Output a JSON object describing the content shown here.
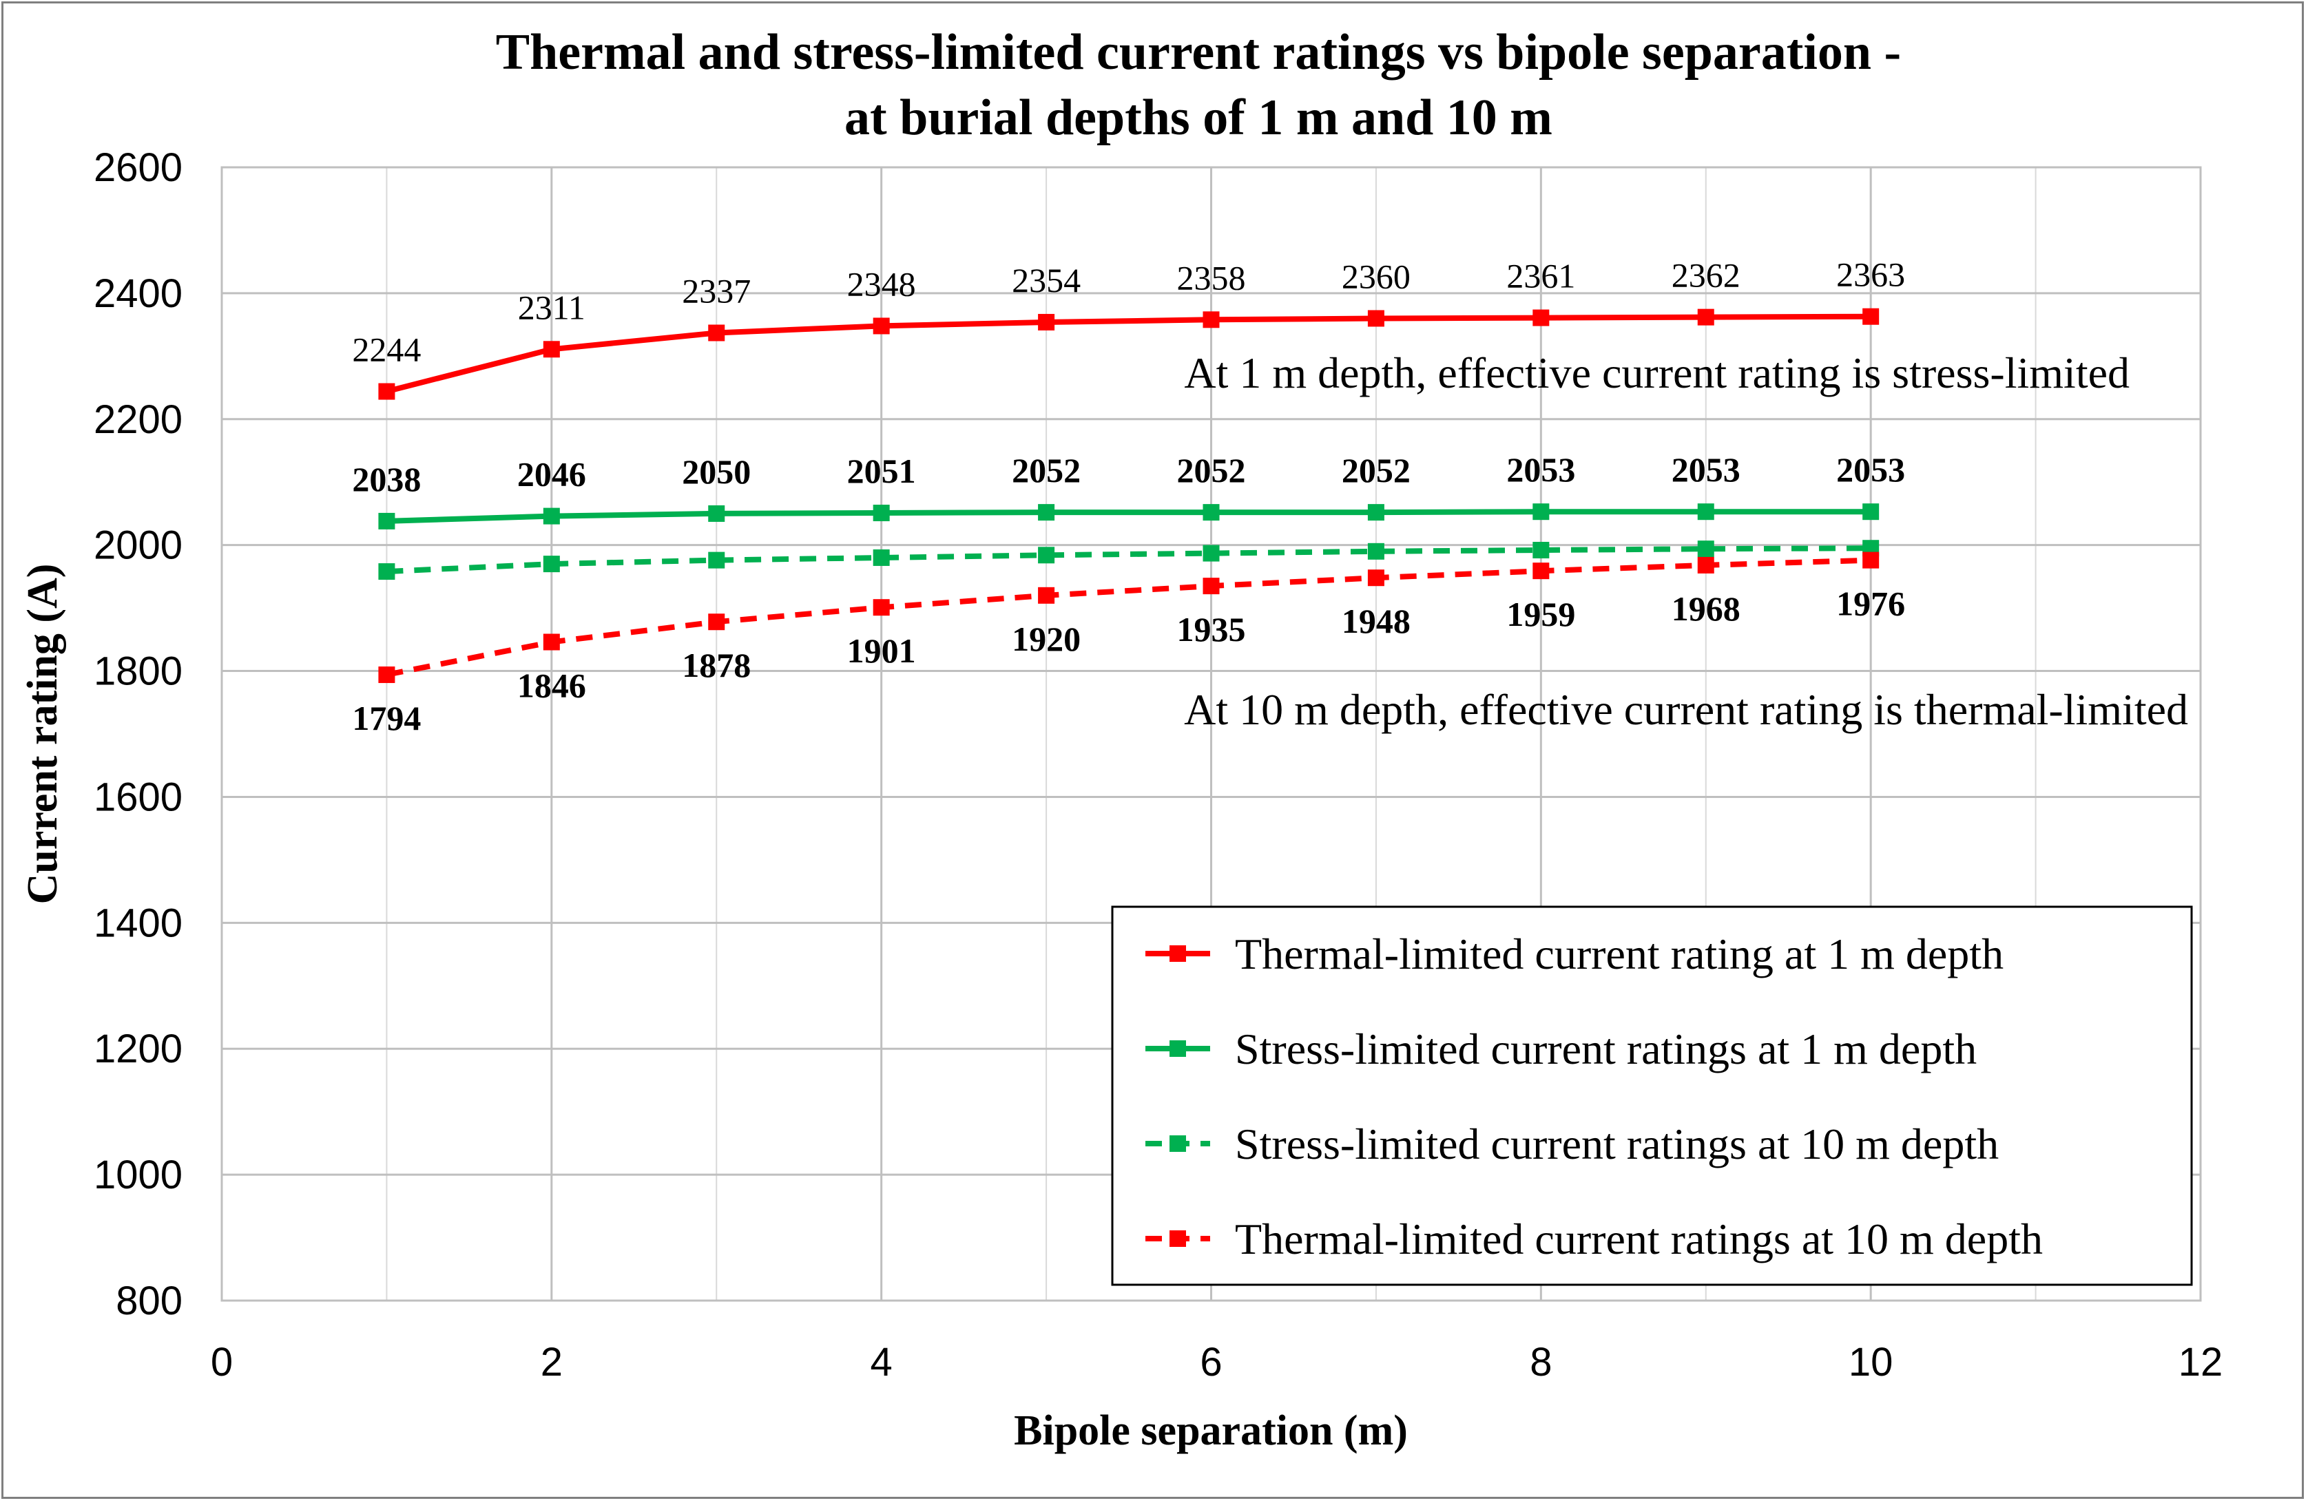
{
  "chart_data": {
    "type": "line",
    "title_line1": "Thermal and stress-limited current ratings vs bipole separation -",
    "title_line2": "at burial depths of 1 m and 10 m",
    "xlabel": "Bipole separation (m)",
    "ylabel": "Current rating (A)",
    "xlim": [
      0,
      12
    ],
    "ylim": [
      800,
      2600
    ],
    "x_ticks": [
      "0",
      "2",
      "4",
      "6",
      "8",
      "10",
      "12"
    ],
    "y_ticks": [
      "800",
      "1000",
      "1200",
      "1400",
      "1600",
      "1800",
      "2000",
      "2200",
      "2400",
      "2600"
    ],
    "grid": true,
    "legend_position": "bottom-right",
    "x": [
      1,
      2,
      3,
      4,
      5,
      6,
      7,
      8,
      9,
      10
    ],
    "series": [
      {
        "name": "Thermal-limited current rating at 1 m depth",
        "values": [
          2244,
          2311,
          2337,
          2348,
          2354,
          2358,
          2360,
          2361,
          2362,
          2363
        ],
        "color": "#ff0000",
        "dashed": false,
        "labels": [
          "2244",
          "2311",
          "2337",
          "2348",
          "2354",
          "2358",
          "2360",
          "2361",
          "2362",
          "2363"
        ],
        "label_style": "normal",
        "label_position": "above"
      },
      {
        "name": "Stress-limited current ratings at 1 m depth",
        "values": [
          2038,
          2046,
          2050,
          2051,
          2052,
          2052,
          2052,
          2053,
          2053,
          2053
        ],
        "color": "#00b050",
        "dashed": false,
        "labels": [
          "2038",
          "2046",
          "2050",
          "2051",
          "2052",
          "2052",
          "2052",
          "2053",
          "2053",
          "2053"
        ],
        "label_style": "bold",
        "label_position": "above"
      },
      {
        "name": "Stress-limited current ratings at 10 m depth",
        "values": [
          1958,
          1970,
          1976,
          1980,
          1984,
          1987,
          1990,
          1992,
          1994,
          1995
        ],
        "color": "#00b050",
        "dashed": true,
        "labels": [],
        "label_style": "bold",
        "label_position": "none"
      },
      {
        "name": "Thermal-limited current ratings at 10 m depth",
        "values": [
          1794,
          1846,
          1878,
          1901,
          1920,
          1935,
          1948,
          1959,
          1968,
          1976
        ],
        "color": "#ff0000",
        "dashed": true,
        "labels": [
          "1794",
          "1846",
          "1878",
          "1901",
          "1920",
          "1935",
          "1948",
          "1959",
          "1968",
          "1976"
        ],
        "label_style": "bold",
        "label_position": "below"
      }
    ],
    "annotations": [
      "At 1 m depth, effective current rating is stress-limited",
      "At 10 m depth, effective current rating is thermal-limited"
    ]
  }
}
